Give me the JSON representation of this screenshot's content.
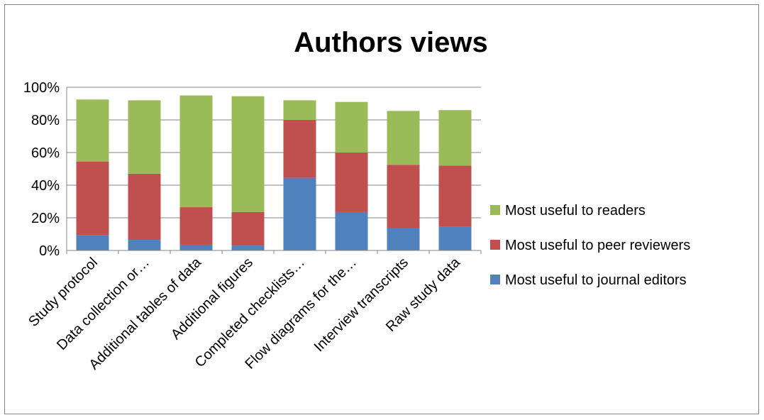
{
  "chart_data": {
    "type": "bar",
    "stacked": true,
    "title": "Authors views",
    "xlabel": "",
    "ylabel": "",
    "ylim": [
      0,
      1
    ],
    "yticks": [
      "0%",
      "20%",
      "40%",
      "60%",
      "80%",
      "100%"
    ],
    "grid": true,
    "legend_position": "right",
    "categories": [
      "Study protocol",
      "Data collection or…",
      "Additional tables of data",
      "Additional figures",
      "Completed checklists…",
      "Flow diagrams for the…",
      "Interview transcripts",
      "Raw study data"
    ],
    "series": [
      {
        "name": "Most useful to journal editors",
        "color": "#4F81BD",
        "values": [
          0.095,
          0.065,
          0.035,
          0.03,
          0.445,
          0.235,
          0.135,
          0.145
        ]
      },
      {
        "name": "Most useful to peer reviewers",
        "color": "#C0504D",
        "values": [
          0.45,
          0.405,
          0.23,
          0.205,
          0.355,
          0.365,
          0.39,
          0.375
        ]
      },
      {
        "name": "Most useful to readers",
        "color": "#9BBB59",
        "values": [
          0.38,
          0.45,
          0.685,
          0.71,
          0.12,
          0.31,
          0.33,
          0.34
        ]
      }
    ]
  }
}
